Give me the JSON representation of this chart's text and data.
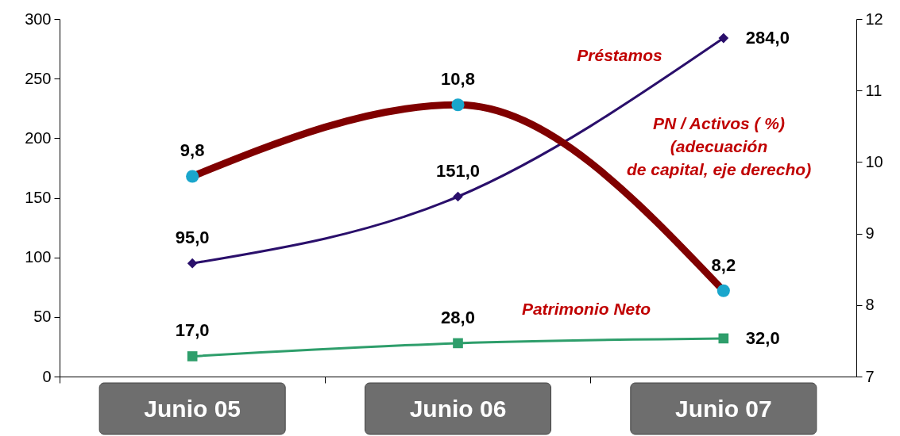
{
  "chart_data": {
    "type": "line",
    "categories": [
      "Junio 05",
      "Junio 06",
      "Junio 07"
    ],
    "series": [
      {
        "name": "Préstamos",
        "color": "#2a0f6b",
        "values": [
          95.0,
          151.0,
          284.0
        ],
        "marker": "diamond",
        "value_labels": [
          "95,0",
          "151,0",
          "284,0"
        ]
      },
      {
        "name": "Patrimonio Neto",
        "color": "#2e9e6b",
        "values": [
          17.0,
          28.0,
          32.0
        ],
        "marker": "square",
        "value_labels": [
          "17,0",
          "28,0",
          "32,0"
        ]
      },
      {
        "name": "PN / Activos ( %)\n(adecuación\nde capital, eje derecho)",
        "color": "#800000",
        "colors": [
          "#1aa6cc",
          "#1aa6cc",
          "#1aa6cc"
        ],
        "axis": "y2",
        "values": [
          9.8,
          10.8,
          8.2
        ],
        "marker": "circle",
        "value_labels": [
          "9,8",
          "10,8",
          "8,2"
        ]
      }
    ],
    "ylim": [
      0,
      300
    ],
    "yticks": [
      0,
      50,
      100,
      150,
      200,
      250,
      300
    ],
    "y2lim": [
      7,
      12
    ],
    "y2ticks": [
      7,
      8,
      9,
      10,
      11,
      12
    ],
    "grid": false,
    "legend": false
  }
}
